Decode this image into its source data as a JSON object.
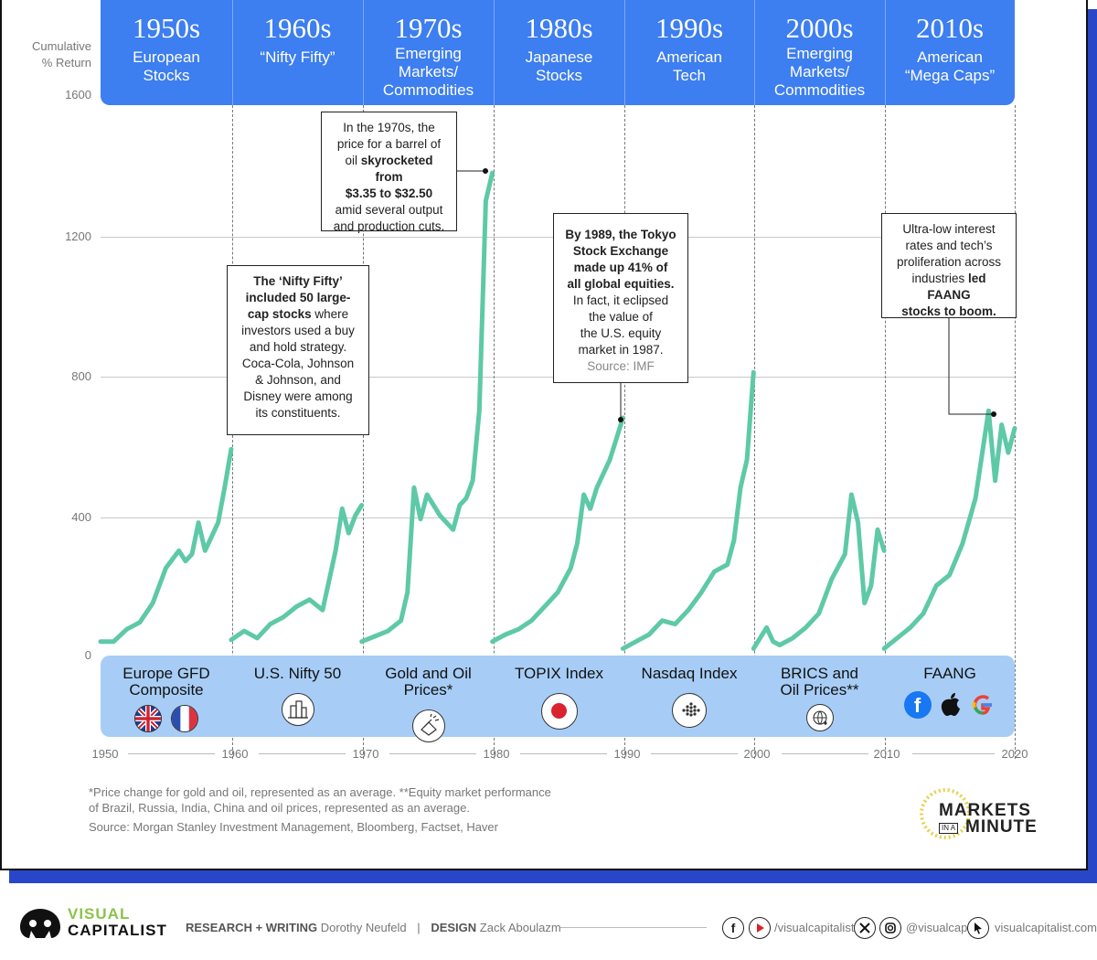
{
  "y_axis": {
    "title_line1": "Cumulative",
    "title_line2": "% Return",
    "ticks": [
      "1600",
      "1200",
      "800",
      "400",
      "0"
    ]
  },
  "eras": [
    {
      "decade": "1950s",
      "label_lines": [
        "European",
        "Stocks"
      ]
    },
    {
      "decade": "1960s",
      "label_lines": [
        "“Nifty Fifty”"
      ]
    },
    {
      "decade": "1970s",
      "label_lines": [
        "Emerging",
        "Markets/",
        "Commodities"
      ]
    },
    {
      "decade": "1980s",
      "label_lines": [
        "Japanese",
        "Stocks"
      ]
    },
    {
      "decade": "1990s",
      "label_lines": [
        "American",
        "Tech"
      ]
    },
    {
      "decade": "2000s",
      "label_lines": [
        "Emerging",
        "Markets/",
        "Commodities"
      ]
    },
    {
      "decade": "2010s",
      "label_lines": [
        "American",
        "“Mega Caps”"
      ]
    }
  ],
  "indices": [
    {
      "name_lines": [
        "Europe GFD",
        "Composite"
      ],
      "icon": "uk-flag-icon, france-flag-icon"
    },
    {
      "name_lines": [
        "U.S. Nifty 50"
      ],
      "icon": "city-buildings-icon"
    },
    {
      "name_lines": [
        "Gold and Oil Prices*"
      ],
      "icon": "gold-bars-icon"
    },
    {
      "name_lines": [
        "TOPIX Index"
      ],
      "icon": "japan-flag-icon"
    },
    {
      "name_lines": [
        "Nasdaq Index"
      ],
      "icon": "globe-grid-icon"
    },
    {
      "name_lines": [
        "BRICS and",
        "Oil Prices**"
      ],
      "icon": "globe-oil-drop-icon"
    },
    {
      "name_lines": [
        "FAANG"
      ],
      "icon": "facebook-icon, apple-icon, google-icon"
    }
  ],
  "x_axis": {
    "ticks": [
      "1950",
      "1960",
      "1970",
      "1980",
      "1990",
      "2000",
      "2010",
      "2020"
    ]
  },
  "annotations": {
    "nifty": {
      "lines": [
        "<b>The ‘Nifty Fifty’</b>",
        "<b>included 50 large-</b>",
        "<b>cap stocks</b> where",
        "investors used a buy",
        "and hold strategy.",
        "Coca-Cola, Johnson",
        "& Johnson, and",
        "Disney were among",
        "its constituents."
      ]
    },
    "oil": {
      "lines": [
        "In the 1970s, the",
        "price for a barrel of",
        "oil <b>skyrocketed from</b>",
        "<b>$3.35 to $32.50</b>",
        "amid several output",
        "and production cuts."
      ]
    },
    "tokyo": {
      "lines": [
        "<b>By 1989, the Tokyo</b>",
        "<b>Stock Exchange</b>",
        "<b>made up 41% of</b>",
        "<b>all global equities.</b>",
        "In fact, it eclipsed",
        "the value of",
        "the U.S. equity",
        "market in 1987."
      ],
      "source": "Source: IMF"
    },
    "faang": {
      "lines": [
        "Ultra-low interest",
        "rates and tech’s",
        "proliferation across",
        "industries <b>led FAANG</b>",
        "<b>stocks to boom.</b>"
      ]
    }
  },
  "footnotes": {
    "line1": "*Price change for gold and oil, represented as an average. **Equity market performance",
    "line2": "of Brazil, Russia, India, China and oil prices, represented as an average.",
    "source": "Source: Morgan Stanley Investment Management, Bloomberg, Factset, Haver"
  },
  "brand": {
    "markets_line1": "MARKETS",
    "markets_in_a": "IN A",
    "markets_line2": "MINUTE",
    "vc_line1": "VISUAL",
    "vc_line2": "CAPITALIST",
    "research_label": "RESEARCH + WRITING",
    "research_name": "Dorothy Neufeld",
    "design_label": "DESIGN",
    "design_name": "Zack Aboulazm",
    "social1": "/visualcapitalist",
    "social2": "@visualcap",
    "website": "visualcapitalist.com"
  },
  "colors": {
    "line": "#5ec9a6",
    "era_band": "#3d7ef0",
    "index_band": "#a7cdf6",
    "frame_shadow": "#2846c8",
    "vc_green": "#8bc34a"
  },
  "chart_data": {
    "type": "line",
    "title": "",
    "xlabel": "",
    "ylabel": "Cumulative % Return",
    "ylim": [
      0,
      1600
    ],
    "xlim": [
      1950,
      2020
    ],
    "series": [
      {
        "name": "Europe GFD Composite",
        "x": [
          1950,
          1951,
          1952,
          1953,
          1954,
          1955,
          1956,
          1956.5,
          1957,
          1957.5,
          1958,
          1959,
          1959.5,
          1960
        ],
        "y": [
          40,
          40,
          75,
          95,
          150,
          250,
          300,
          270,
          290,
          380,
          300,
          380,
          480,
          590
        ]
      },
      {
        "name": "U.S. Nifty 50",
        "x": [
          1960,
          1961,
          1962,
          1963,
          1964,
          1965,
          1966,
          1967,
          1968,
          1968.5,
          1969,
          1969.5,
          1970
        ],
        "y": [
          45,
          70,
          50,
          90,
          110,
          140,
          160,
          130,
          300,
          420,
          350,
          400,
          430
        ]
      },
      {
        "name": "Gold and Oil Prices*",
        "x": [
          1970,
          1971,
          1972,
          1973,
          1973.5,
          1974,
          1974.5,
          1975,
          1976,
          1977,
          1977.5,
          1978,
          1978.5,
          1979,
          1979.5,
          1980
        ],
        "y": [
          40,
          55,
          70,
          100,
          180,
          480,
          390,
          460,
          400,
          360,
          430,
          450,
          500,
          700,
          1300,
          1380
        ]
      },
      {
        "name": "TOPIX Index",
        "x": [
          1980,
          1981,
          1982,
          1983,
          1984,
          1985,
          1986,
          1986.5,
          1987,
          1987.5,
          1988,
          1989,
          1989.5,
          1990
        ],
        "y": [
          40,
          60,
          75,
          100,
          140,
          180,
          250,
          320,
          460,
          420,
          480,
          560,
          620,
          680
        ]
      },
      {
        "name": "Nasdaq Index",
        "x": [
          1990,
          1991,
          1992,
          1993,
          1994,
          1995,
          1996,
          1997,
          1998,
          1998.5,
          1999,
          1999.5,
          2000
        ],
        "y": [
          20,
          40,
          60,
          100,
          90,
          130,
          180,
          240,
          260,
          330,
          480,
          560,
          810
        ]
      },
      {
        "name": "BRICS and Oil Prices**",
        "x": [
          2000,
          2001,
          2001.5,
          2002,
          2003,
          2004,
          2005,
          2006,
          2007,
          2007.5,
          2008,
          2008.5,
          2009,
          2009.5,
          2010
        ],
        "y": [
          20,
          80,
          40,
          30,
          50,
          80,
          120,
          220,
          290,
          460,
          380,
          150,
          200,
          360,
          300
        ]
      },
      {
        "name": "FAANG",
        "x": [
          2010,
          2011,
          2012,
          2013,
          2014,
          2015,
          2016,
          2017,
          2018,
          2018.5,
          2019,
          2019.5,
          2020
        ],
        "y": [
          20,
          50,
          80,
          120,
          200,
          230,
          320,
          450,
          700,
          500,
          660,
          580,
          650
        ]
      }
    ]
  }
}
